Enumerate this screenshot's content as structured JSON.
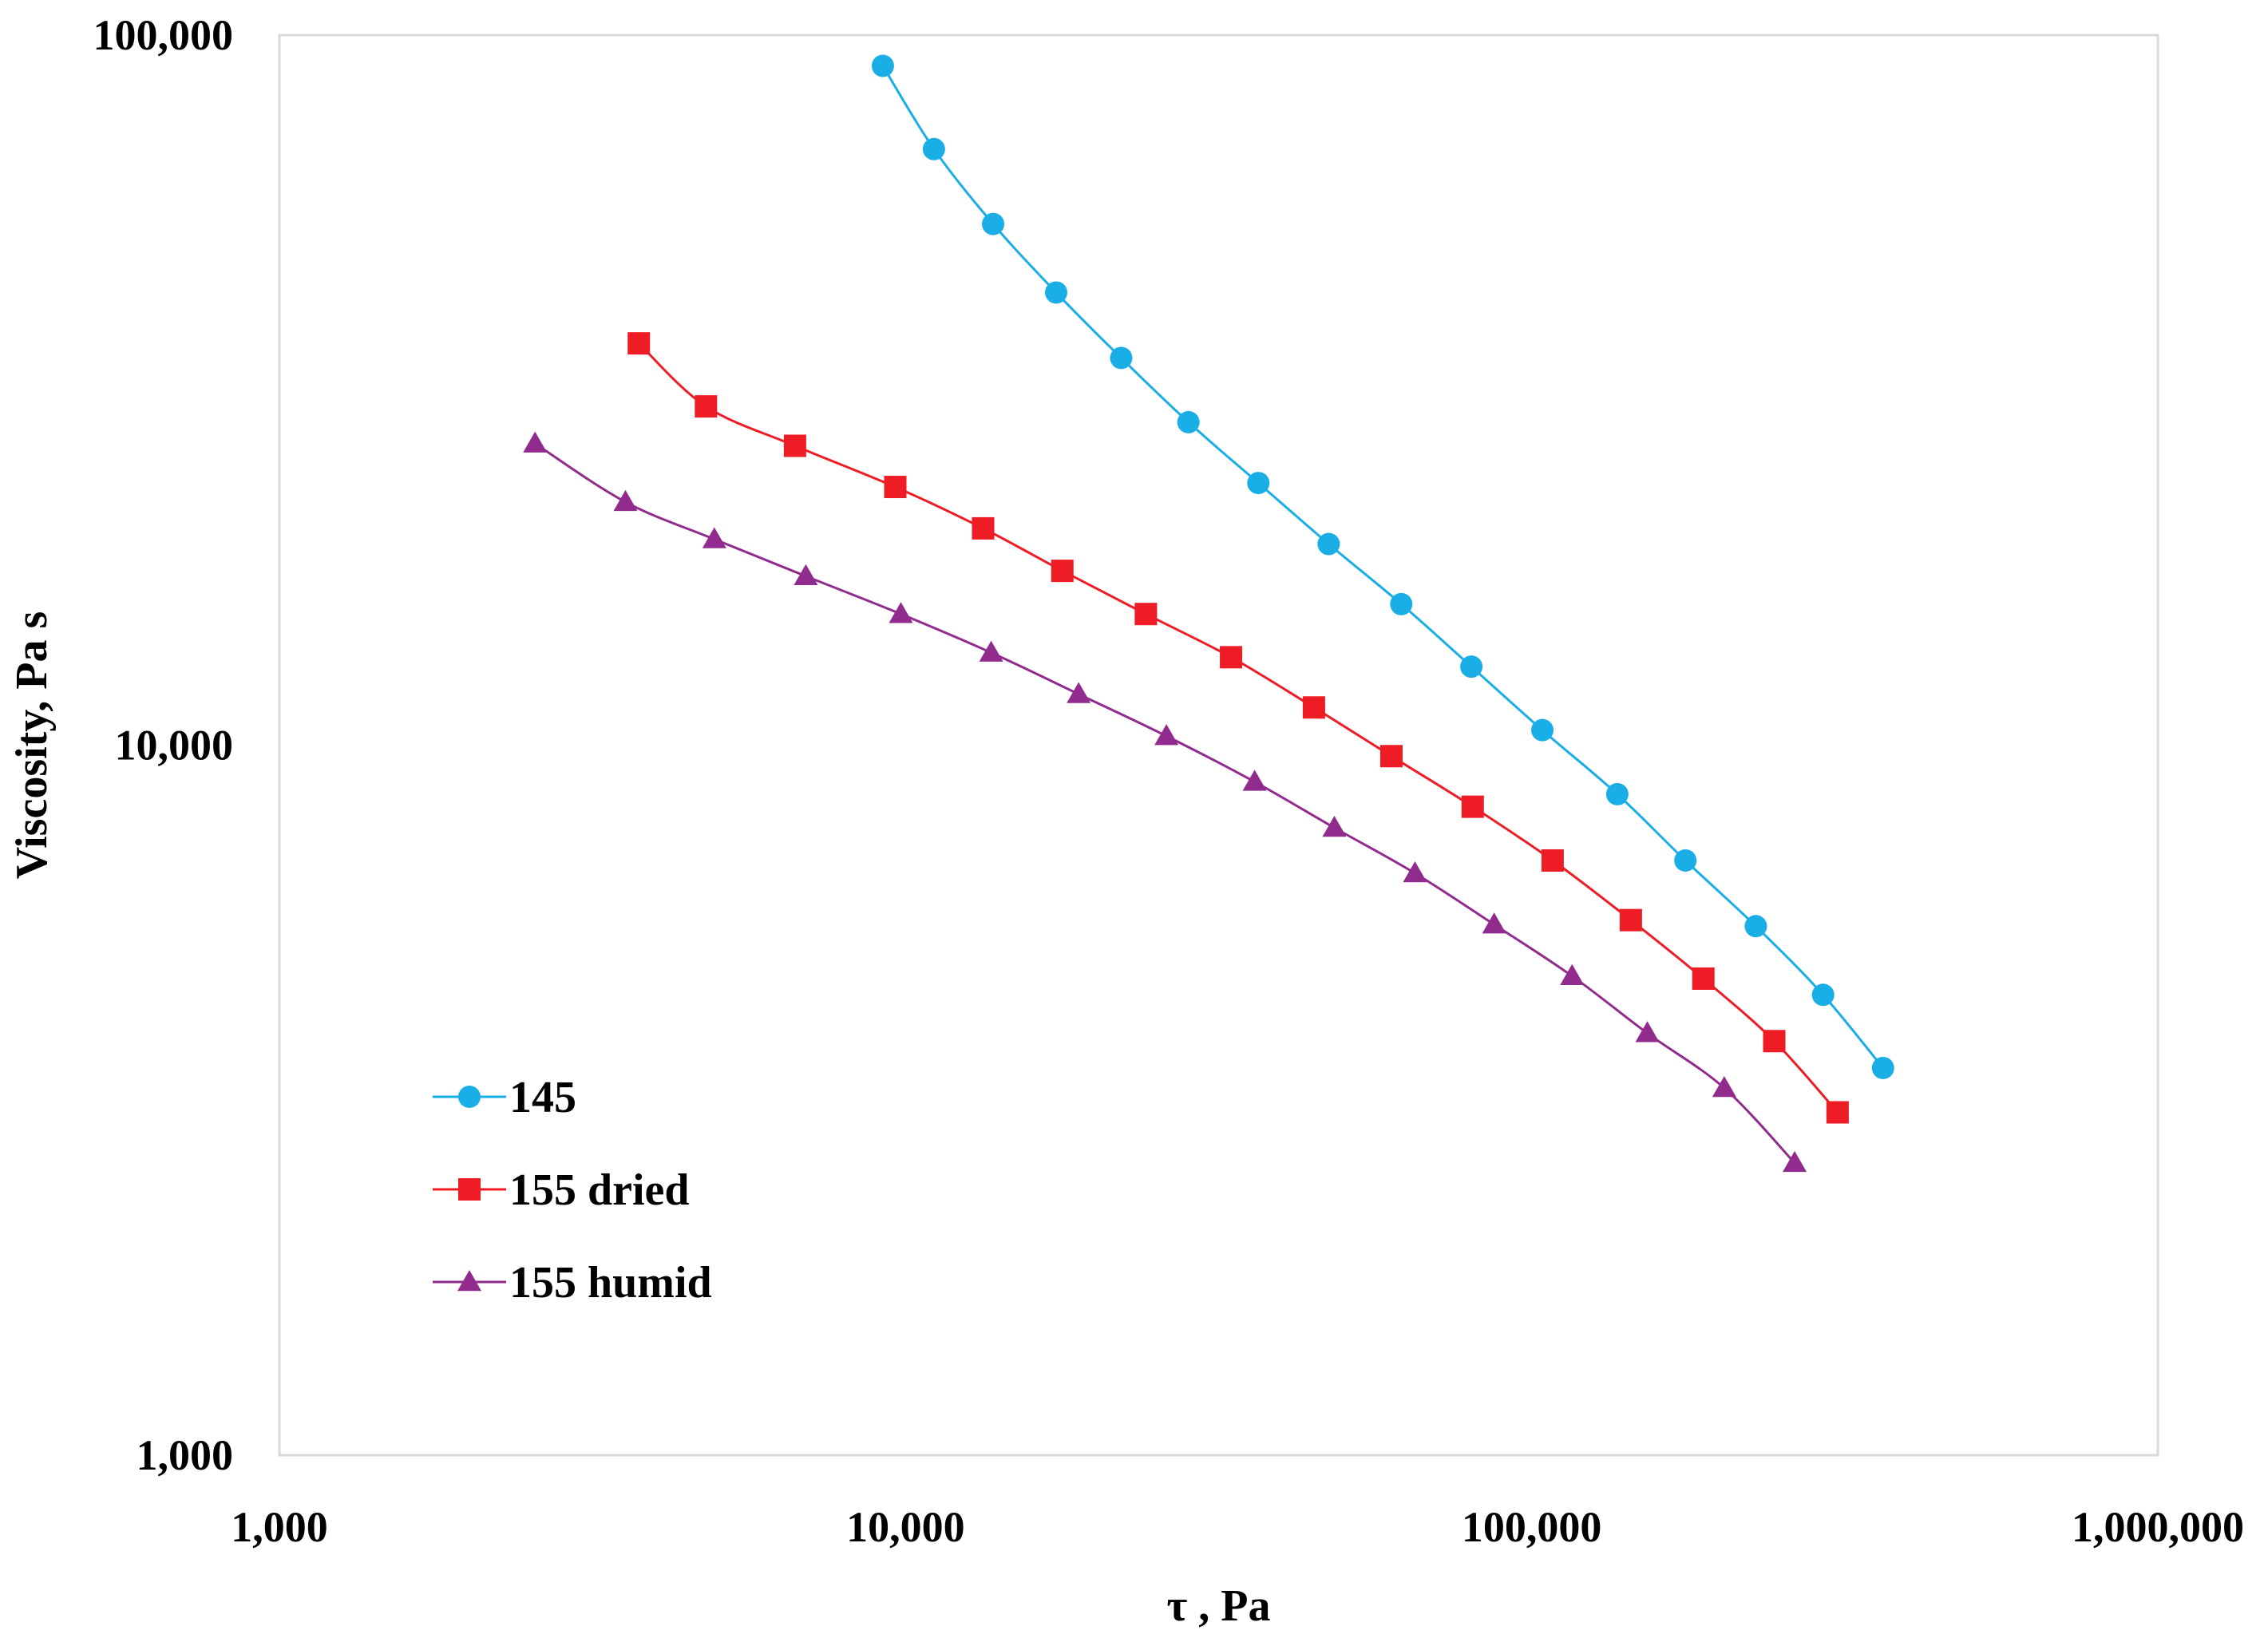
{
  "chart_data": {
    "type": "line",
    "xscale": "log",
    "yscale": "log",
    "xlim": [
      1000,
      1000000
    ],
    "ylim": [
      1000,
      100000
    ],
    "xticks": [
      1000,
      10000,
      100000,
      1000000
    ],
    "yticks": [
      1000,
      10000,
      100000
    ],
    "xtick_labels": [
      "1,000",
      "10,000",
      "100,000",
      "1,000,000"
    ],
    "ytick_labels": [
      "1,000",
      "10,000",
      "100,000"
    ],
    "xlabel": "τ , Pa",
    "ylabel": "Viscosity, Pa s",
    "grid": false,
    "legend_position": "bottom-left",
    "series": [
      {
        "name": "145",
        "marker": "circle",
        "color": "#1aaee6",
        "points": [
          [
            9200,
            90500
          ],
          [
            11100,
            69100
          ],
          [
            13800,
            54200
          ],
          [
            17400,
            43400
          ],
          [
            22100,
            35100
          ],
          [
            28300,
            28500
          ],
          [
            36600,
            23400
          ],
          [
            47400,
            19200
          ],
          [
            61900,
            15800
          ],
          [
            80100,
            12900
          ],
          [
            104000,
            10500
          ],
          [
            137000,
            8530
          ],
          [
            176000,
            6880
          ],
          [
            228000,
            5560
          ],
          [
            292000,
            4450
          ],
          [
            364000,
            3510
          ]
        ]
      },
      {
        "name": "155 dried",
        "marker": "square",
        "color": "#ee1c25",
        "points": [
          [
            3750,
            36800
          ],
          [
            4800,
            30000
          ],
          [
            6660,
            26400
          ],
          [
            9630,
            23100
          ],
          [
            13300,
            20200
          ],
          [
            17800,
            17600
          ],
          [
            24200,
            15300
          ],
          [
            33100,
            13300
          ],
          [
            44900,
            11300
          ],
          [
            59700,
            9650
          ],
          [
            80500,
            8190
          ],
          [
            108000,
            6880
          ],
          [
            144000,
            5670
          ],
          [
            188000,
            4690
          ],
          [
            244000,
            3830
          ],
          [
            308000,
            3040
          ]
        ]
      },
      {
        "name": "155 humid",
        "marker": "triangle",
        "color": "#912b8e",
        "points": [
          [
            2560,
            26600
          ],
          [
            3570,
            22000
          ],
          [
            4950,
            19500
          ],
          [
            6930,
            17300
          ],
          [
            9830,
            15300
          ],
          [
            13700,
            13500
          ],
          [
            18900,
            11800
          ],
          [
            26100,
            10300
          ],
          [
            36100,
            8880
          ],
          [
            48400,
            7650
          ],
          [
            65100,
            6600
          ],
          [
            87100,
            5590
          ],
          [
            116000,
            4730
          ],
          [
            153000,
            3930
          ],
          [
            203000,
            3290
          ],
          [
            263000,
            2580
          ]
        ]
      }
    ]
  }
}
